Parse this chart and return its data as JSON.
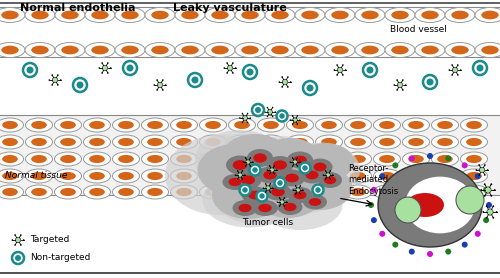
{
  "title_left": "Normal endothelia",
  "title_right": "Leaky vasculature",
  "label_blood_vessel": "Blood vessel",
  "label_normal_tissue": "Normal tissue",
  "label_tumor_cells": "Tumor cells",
  "label_receptor": "Receptor-\nmediated\nEndocytosis",
  "label_targeted": "Targeted",
  "label_nontargeted": "Non-targeted",
  "bg_color": "#ffffff",
  "orange_cell_color": "#d4661a",
  "red_cell_color": "#cc1111",
  "gray_tumor_color": "#7a7a7a",
  "light_gray_tumor": "#b8b8b8",
  "lighter_gray": "#d0d0d0",
  "teal_color": "#1a8a8a",
  "green_cell_color": "#a8e0a0",
  "cell_bg": "#f2f2f2",
  "cell_border": "#999999",
  "blue_dot": "#1a3db0",
  "green_dot": "#207a20",
  "magenta_dot": "#cc10cc"
}
